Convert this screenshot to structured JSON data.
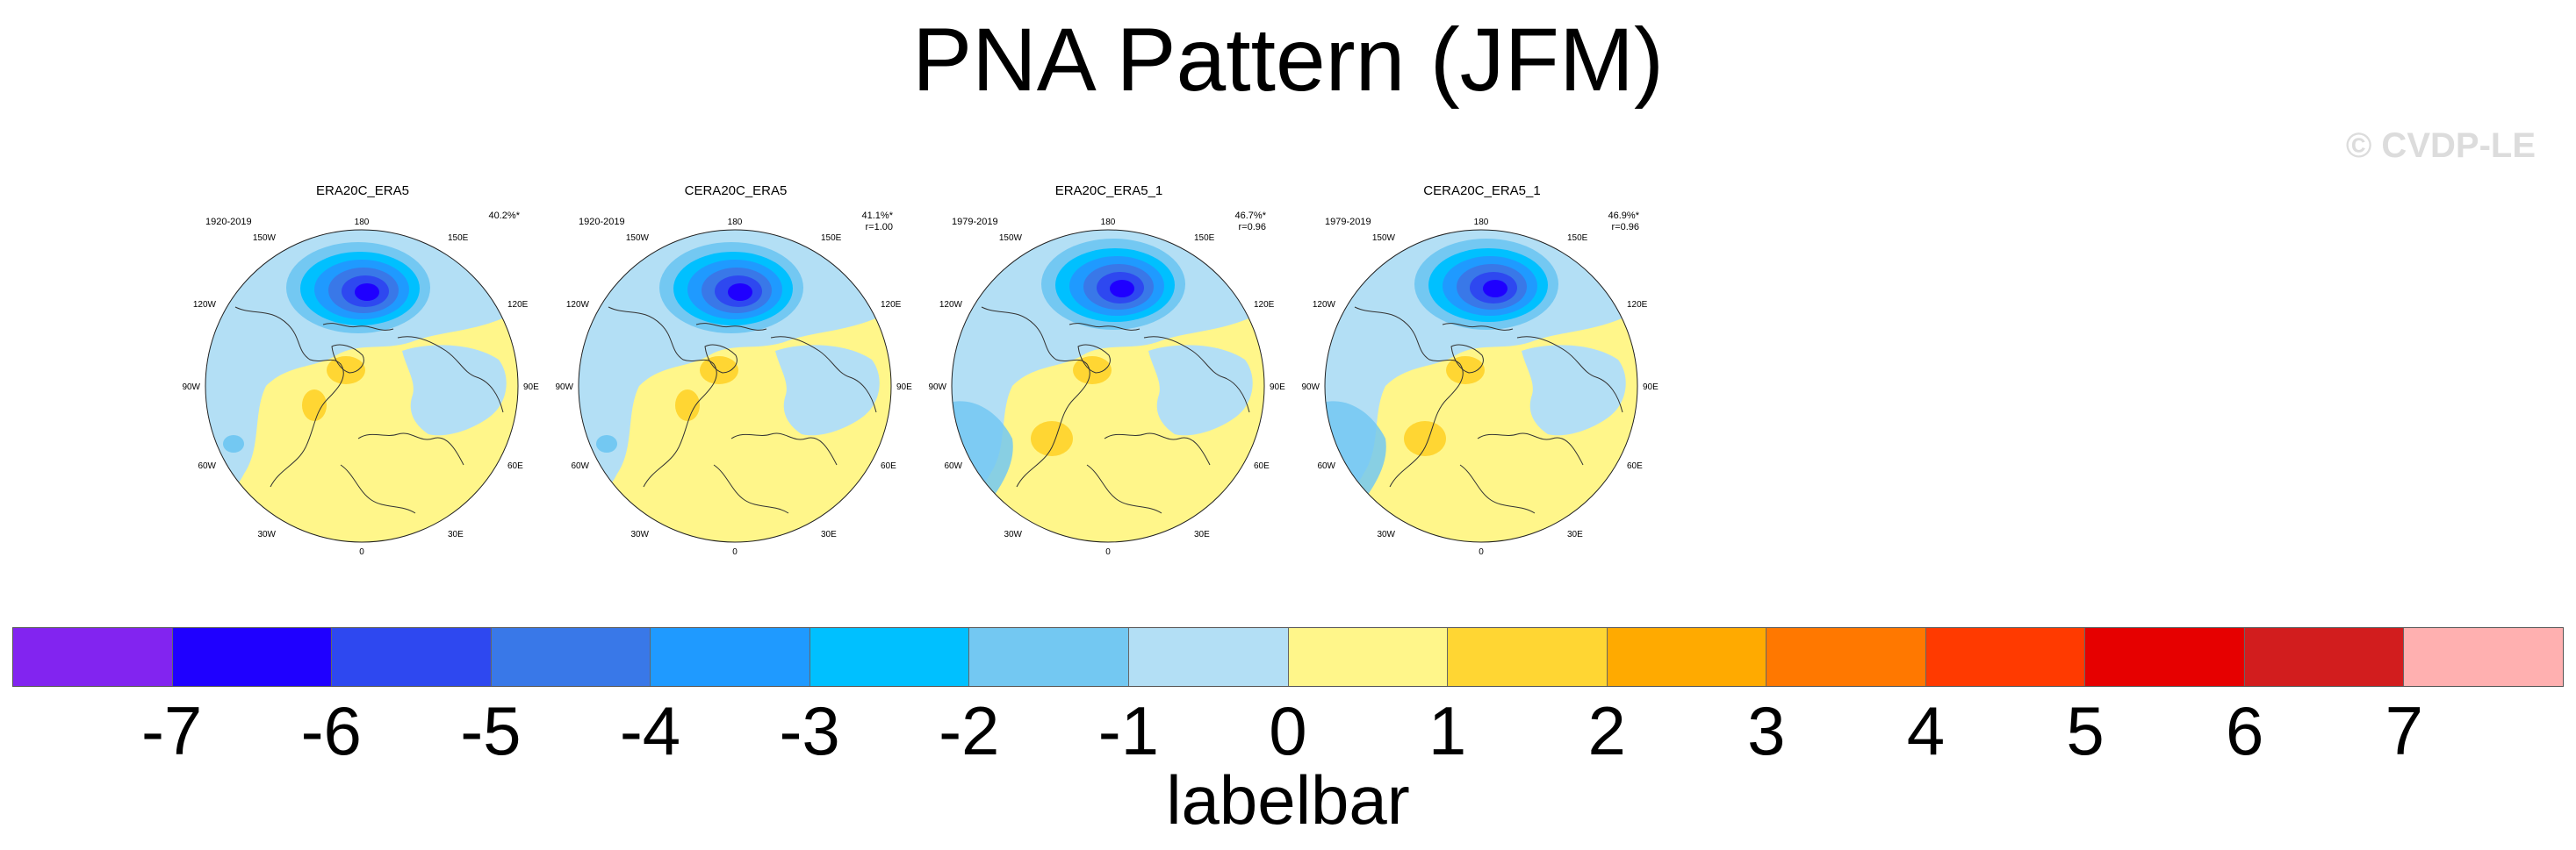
{
  "title": "PNA Pattern (JFM)",
  "watermark": "© CVDP-LE",
  "panels": [
    {
      "title": "ERA20C_ERA5",
      "years": "1920-2019",
      "pct": "40.2%*",
      "corr": ""
    },
    {
      "title": "CERA20C_ERA5",
      "years": "1920-2019",
      "pct": "41.1%*",
      "corr": "r=1.00"
    },
    {
      "title": "ERA20C_ERA5_1",
      "years": "1979-2019",
      "pct": "46.7%*",
      "corr": "r=0.96"
    },
    {
      "title": "CERA20C_ERA5_1",
      "years": "1979-2019",
      "pct": "46.9%*",
      "corr": "r=0.96"
    }
  ],
  "longitude_labels": {
    "top": "180",
    "bottom": "0",
    "left": "90W",
    "right": "90E",
    "upper_left_1": "150W",
    "upper_left_2": "120W",
    "lower_left_1": "60W",
    "lower_left_2": "30W",
    "upper_right_1": "150E",
    "upper_right_2": "120E",
    "lower_right_1": "60E",
    "lower_right_2": "30E"
  },
  "colorbar": {
    "colors": [
      "#8224f0",
      "#1f00ff",
      "#2e48f0",
      "#3978e8",
      "#1f9aff",
      "#00c0ff",
      "#73c8f2",
      "#b3dff5",
      "#fff68a",
      "#ffd633",
      "#ffaa00",
      "#ff7800",
      "#ff3a00",
      "#e60000",
      "#d21d1e",
      "#ffb0b0"
    ],
    "ticks": [
      "-7",
      "-6",
      "-5",
      "-4",
      "-3",
      "-2",
      "-1",
      "0",
      "1",
      "2",
      "3",
      "4",
      "5",
      "6",
      "7"
    ],
    "label": "labelbar"
  },
  "map_colors": {
    "ocean_neg1": "#b3dff5",
    "pos1": "#fff68a",
    "pos2": "#ffd633",
    "neg2": "#73c8f2",
    "neg3": "#00c0ff",
    "neg4": "#1f9aff",
    "neg5": "#3978e8",
    "neg6": "#2e48f0",
    "neg7": "#1f00ff",
    "coast": "#333333"
  }
}
